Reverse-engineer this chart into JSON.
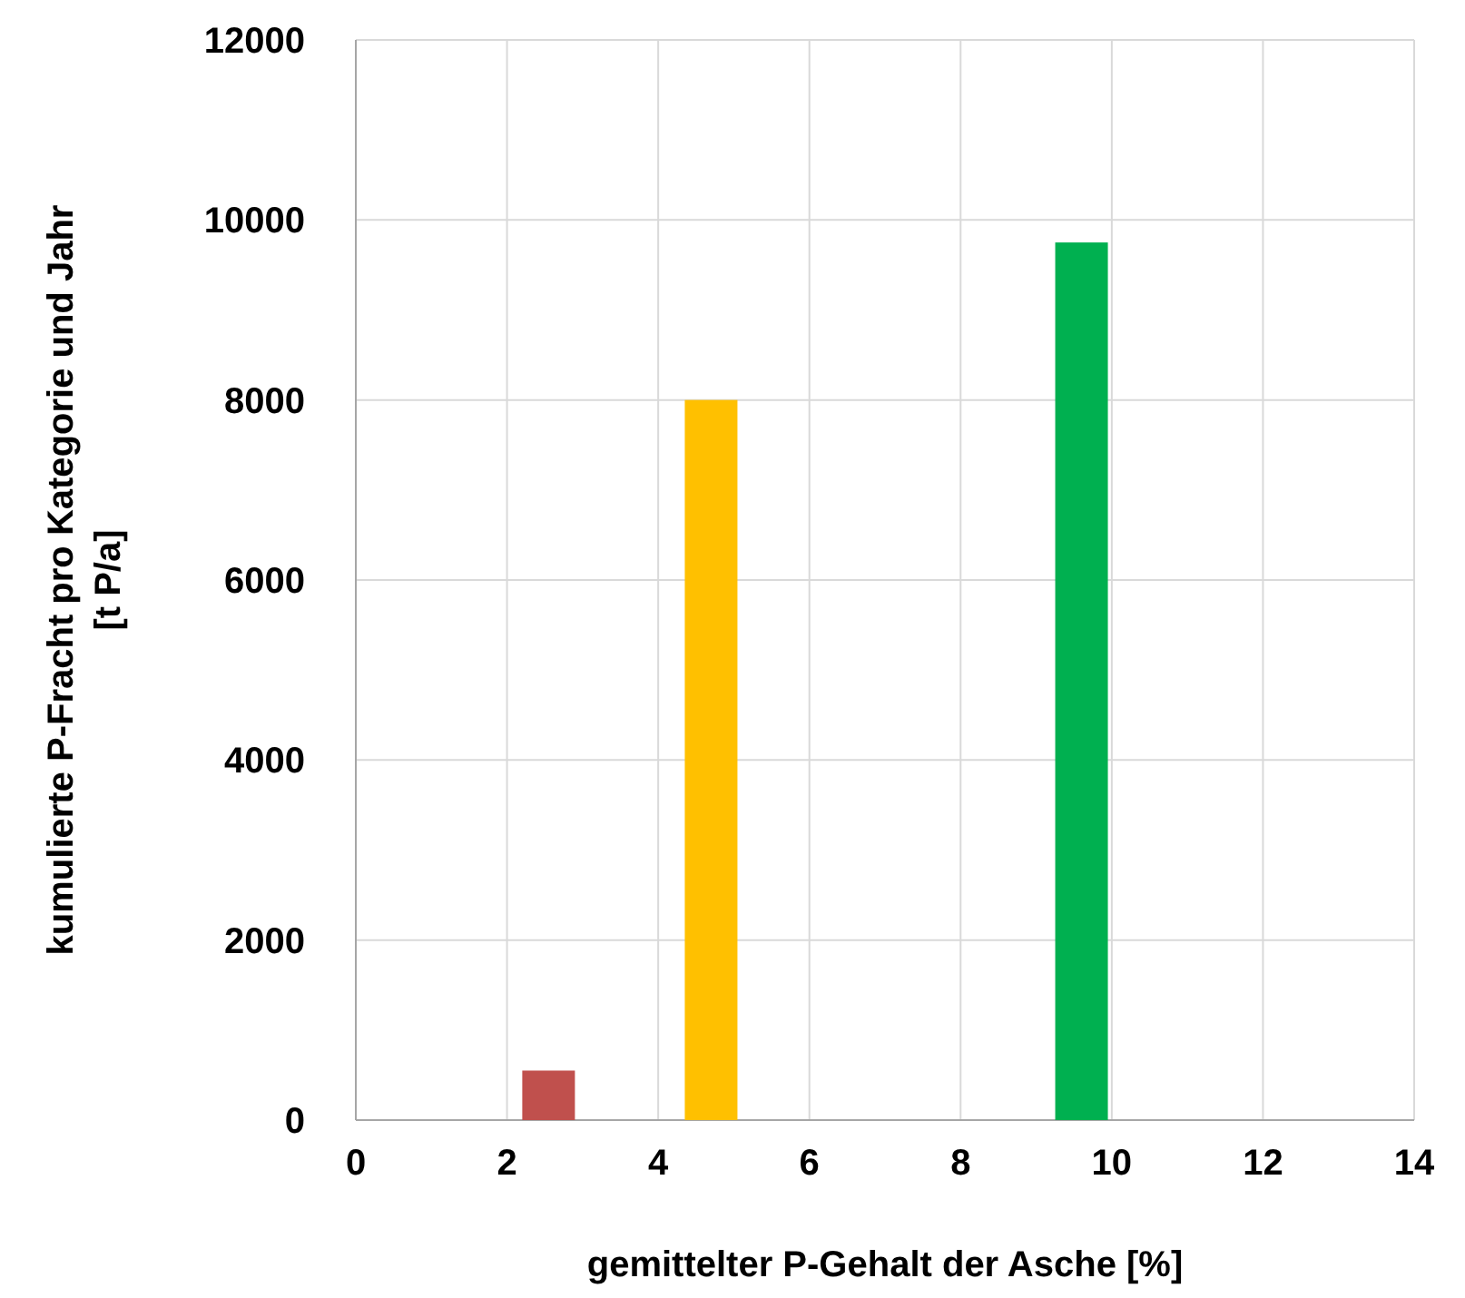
{
  "chart_data": {
    "type": "bar",
    "xlabel": "gemittelter P-Gehalt der Asche [%]",
    "ylabel": "kumulierte P-Fracht pro Kategorie und Jahr\n[t P/a]",
    "x": [
      2.55,
      4.7,
      9.6
    ],
    "values": [
      550,
      8000,
      9750
    ],
    "colors": [
      "#c0504d",
      "#ffc000",
      "#00b050"
    ],
    "xlim": [
      0,
      14
    ],
    "xticks": [
      0,
      2,
      4,
      6,
      8,
      10,
      12,
      14
    ],
    "ylim": [
      0,
      12000
    ],
    "yticks": [
      0,
      2000,
      4000,
      6000,
      8000,
      10000,
      12000
    ],
    "grid": true
  }
}
